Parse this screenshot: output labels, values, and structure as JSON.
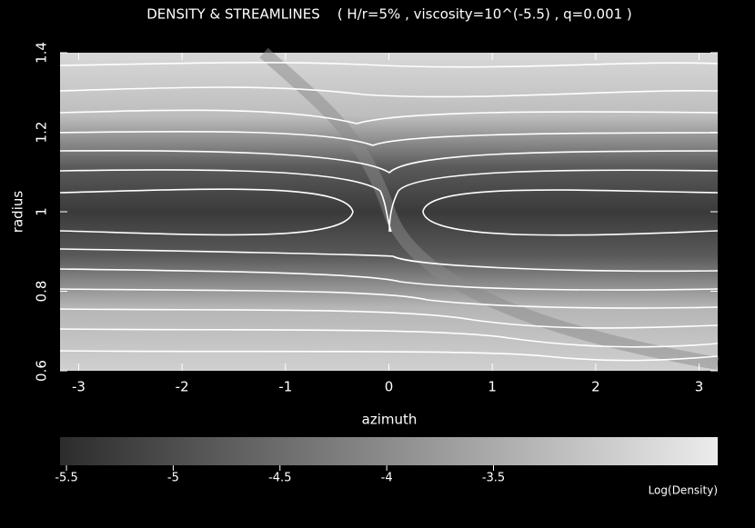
{
  "chart_data": {
    "type": "heatmap",
    "title": "DENSITY & STREAMLINES    ( H/r=5% , viscosity=10^(-5.5) , q=0.001 )",
    "x_label": "azimuth",
    "y_label": "radius",
    "xlim": [
      -3.18,
      3.18
    ],
    "xticks": [
      -3,
      -2,
      -1,
      0,
      1,
      2,
      3
    ],
    "ylim": [
      0.6,
      1.4
    ],
    "yticks": [
      0.6,
      0.8,
      1,
      1.2,
      1.4
    ],
    "colorbar": {
      "label": "Log(Density)",
      "lim": [
        -5.53,
        -2.45
      ],
      "ticks": [
        -5.5,
        -5,
        -4.5,
        -4,
        -3.5
      ],
      "colors": [
        "#2c2c2c",
        "#ececec"
      ]
    }
  }
}
